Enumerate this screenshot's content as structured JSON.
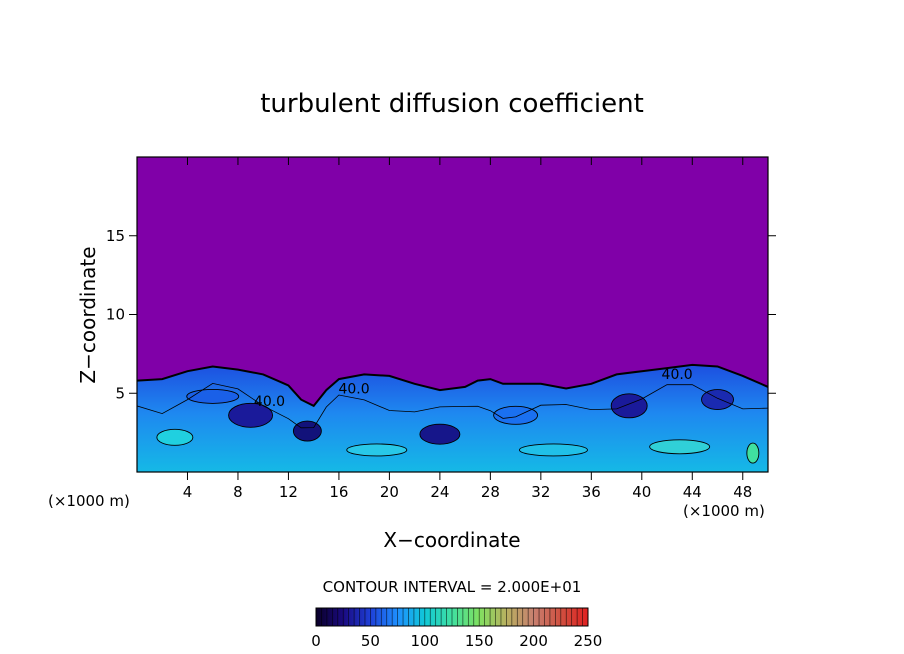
{
  "chart_data": {
    "type": "heatmap",
    "title": "turbulent diffusion coefficient",
    "xlabel": "X−coordinate",
    "ylabel": "Z−coordinate",
    "x_unit_left": "(×1000 m)",
    "x_unit_right": "(×1000 m)",
    "xlim": [
      0,
      50
    ],
    "ylim": [
      0,
      20
    ],
    "x_ticks": [
      4,
      8,
      12,
      16,
      20,
      24,
      28,
      32,
      36,
      40,
      44,
      48
    ],
    "y_ticks": [
      5,
      10,
      15
    ],
    "x_tick_labels": [
      "4",
      "8",
      "12",
      "16",
      "20",
      "24",
      "28",
      "32",
      "36",
      "40",
      "44",
      "48"
    ],
    "y_tick_labels": [
      "5",
      "10",
      "15"
    ],
    "contour_interval_text": "CONTOUR INTERVAL = 2.000E+01",
    "contour_labels": [
      {
        "text": "40.0",
        "x": 10.5,
        "z": 4.2
      },
      {
        "text": "40.0",
        "x": 17.2,
        "z": 5.0
      },
      {
        "text": "40.0",
        "x": 42.8,
        "z": 5.9
      }
    ],
    "background_color": "#8000a8",
    "colorbar": {
      "min": 0,
      "max": 250,
      "tick_values": [
        0,
        50,
        100,
        150,
        200,
        250
      ],
      "tick_labels": [
        "0",
        "50",
        "100",
        "150",
        "200",
        "250"
      ],
      "colors": [
        "#0a0028",
        "#1a0a80",
        "#1e40d8",
        "#1e90ff",
        "#10c8d8",
        "#40e0a0",
        "#80e060",
        "#b8b060",
        "#c88070",
        "#d05040",
        "#e02020"
      ]
    },
    "turbulent_layer_top": [
      [
        0,
        5.8
      ],
      [
        2,
        5.9
      ],
      [
        4,
        6.4
      ],
      [
        6,
        6.7
      ],
      [
        8,
        6.5
      ],
      [
        10,
        6.2
      ],
      [
        12,
        5.5
      ],
      [
        13,
        4.6
      ],
      [
        14,
        4.2
      ],
      [
        15,
        5.2
      ],
      [
        16,
        5.9
      ],
      [
        18,
        6.2
      ],
      [
        20,
        6.1
      ],
      [
        22,
        5.6
      ],
      [
        24,
        5.2
      ],
      [
        26,
        5.4
      ],
      [
        27,
        5.8
      ],
      [
        28,
        5.9
      ],
      [
        29,
        5.6
      ],
      [
        30,
        5.6
      ],
      [
        32,
        5.6
      ],
      [
        34,
        5.3
      ],
      [
        36,
        5.6
      ],
      [
        38,
        6.2
      ],
      [
        40,
        6.4
      ],
      [
        42,
        6.6
      ],
      [
        44,
        6.8
      ],
      [
        46,
        6.7
      ],
      [
        48,
        6.1
      ],
      [
        50,
        5.4
      ]
    ]
  }
}
